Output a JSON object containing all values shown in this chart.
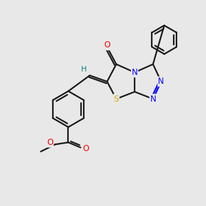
{
  "background_color": "#e8e8e8",
  "atom_colors": {
    "N": "#0000ff",
    "O": "#ff0000",
    "S": "#ccaa00",
    "H": "#008080"
  },
  "bond_color": "#1a1a1a",
  "lw": 1.6
}
